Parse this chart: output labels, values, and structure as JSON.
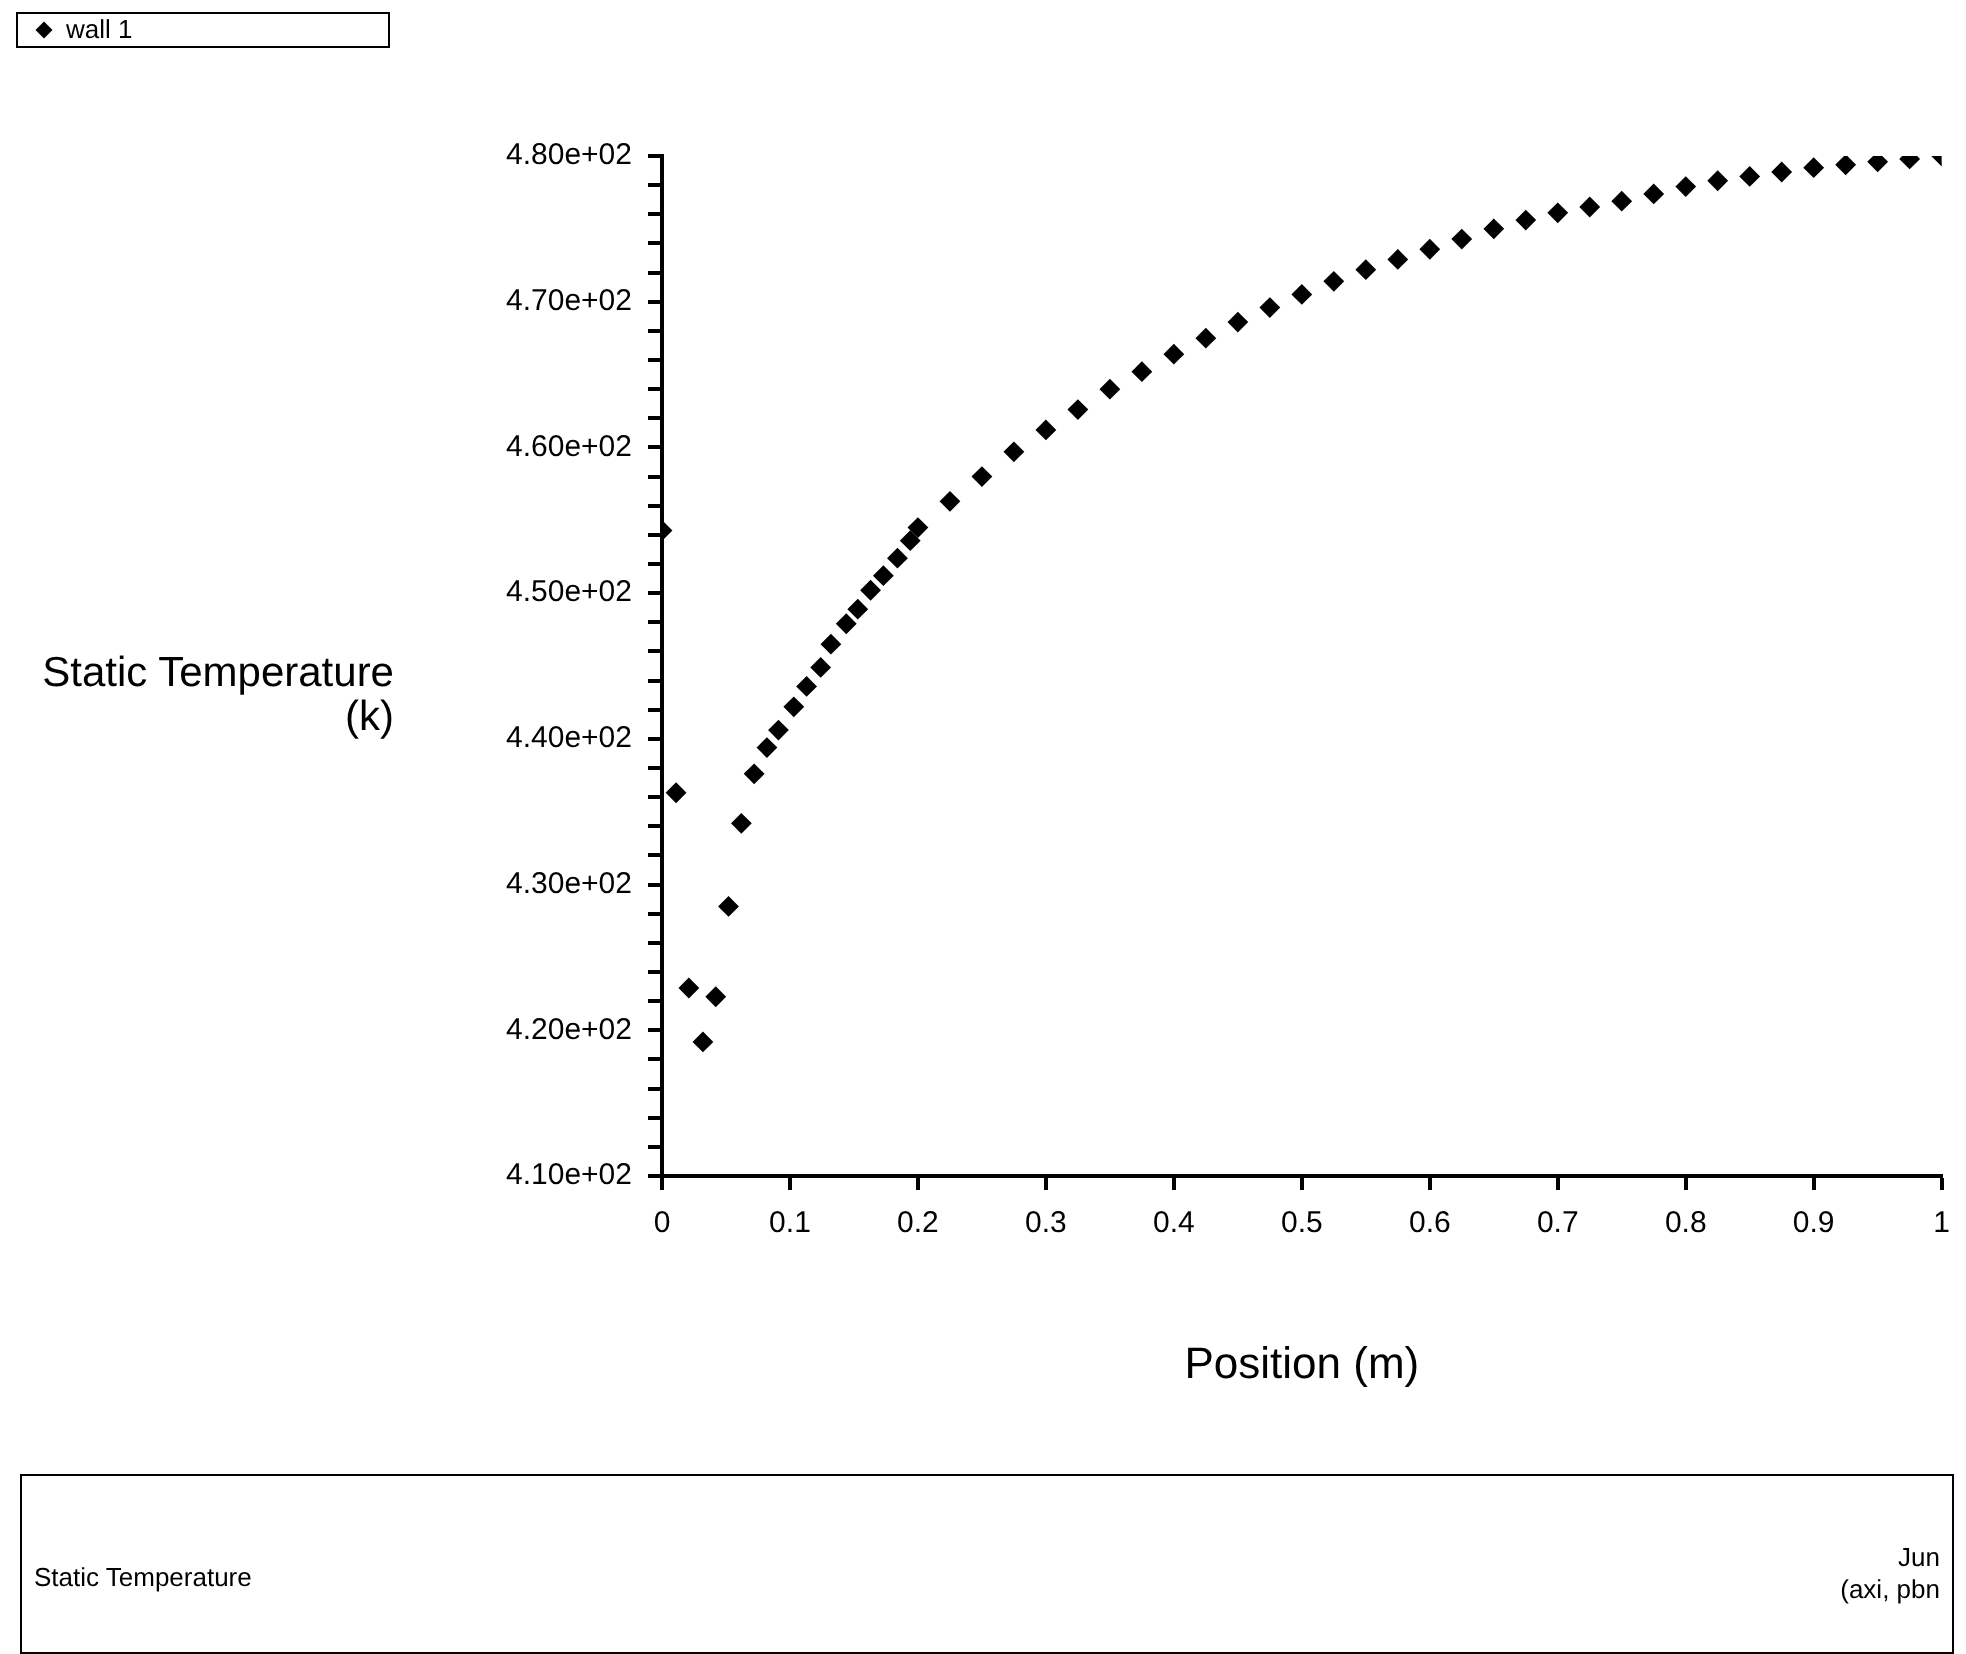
{
  "chart_data": {
    "type": "scatter",
    "xlabel": "Position (m)",
    "ylabel": "Static Temperature (k)",
    "series": [
      {
        "name": "wall 1",
        "color": "#000000",
        "x": [
          0,
          0.011,
          0.021,
          0.032,
          0.042,
          0.052,
          0.062,
          0.072,
          0.082,
          0.091,
          0.103,
          0.113,
          0.124,
          0.132,
          0.144,
          0.153,
          0.163,
          0.173,
          0.184,
          0.194,
          0.2,
          0.225,
          0.25,
          0.275,
          0.3,
          0.325,
          0.35,
          0.375,
          0.4,
          0.425,
          0.45,
          0.475,
          0.5,
          0.525,
          0.55,
          0.575,
          0.6,
          0.625,
          0.65,
          0.675,
          0.7,
          0.725,
          0.75,
          0.775,
          0.8,
          0.825,
          0.85,
          0.875,
          0.9,
          0.925,
          0.95,
          0.975,
          1
        ],
        "values": [
          454.3,
          436.3,
          422.9,
          419.2,
          422.3,
          428.5,
          434.2,
          437.6,
          439.4,
          440.6,
          442.2,
          443.6,
          444.9,
          446.5,
          447.9,
          448.9,
          450.2,
          451.2,
          452.4,
          453.6,
          454.5,
          456.3,
          458,
          459.7,
          461.2,
          462.6,
          464,
          465.2,
          466.4,
          467.5,
          468.6,
          469.6,
          470.5,
          471.4,
          472.2,
          472.9,
          473.6,
          474.3,
          475,
          475.6,
          476.1,
          476.5,
          476.9,
          477.4,
          477.9,
          478.3,
          478.6,
          478.9,
          479.2,
          479.4,
          479.6,
          479.8,
          480
        ]
      }
    ],
    "xlim": [
      0,
      1
    ],
    "xticks": [
      0,
      0.1,
      0.2,
      0.3,
      0.4,
      0.5,
      0.6,
      0.7,
      0.8,
      0.9,
      1
    ],
    "ylim": [
      410,
      480
    ],
    "yticks": [
      {
        "value": 410,
        "label": "4.10e+02"
      },
      {
        "value": 412,
        "label": null
      },
      {
        "value": 414,
        "label": null
      },
      {
        "value": 416,
        "label": null
      },
      {
        "value": 418,
        "label": null
      },
      {
        "value": 420,
        "label": "4.20e+02"
      },
      {
        "value": 422,
        "label": null
      },
      {
        "value": 424,
        "label": null
      },
      {
        "value": 426,
        "label": null
      },
      {
        "value": 428,
        "label": null
      },
      {
        "value": 430,
        "label": "4.30e+02"
      },
      {
        "value": 432,
        "label": null
      },
      {
        "value": 434,
        "label": null
      },
      {
        "value": 436,
        "label": null
      },
      {
        "value": 438,
        "label": null
      },
      {
        "value": 440,
        "label": "4.40e+02"
      },
      {
        "value": 442,
        "label": null
      },
      {
        "value": 444,
        "label": null
      },
      {
        "value": 446,
        "label": null
      },
      {
        "value": 448,
        "label": null
      },
      {
        "value": 450,
        "label": "4.50e+02"
      },
      {
        "value": 452,
        "label": null
      },
      {
        "value": 454,
        "label": null
      },
      {
        "value": 456,
        "label": null
      },
      {
        "value": 458,
        "label": null
      },
      {
        "value": 460,
        "label": "4.60e+02"
      },
      {
        "value": 462,
        "label": null
      },
      {
        "value": 464,
        "label": null
      },
      {
        "value": 466,
        "label": null
      },
      {
        "value": 468,
        "label": null
      },
      {
        "value": 470,
        "label": "4.70e+02"
      },
      {
        "value": 472,
        "label": null
      },
      {
        "value": 474,
        "label": null
      },
      {
        "value": 476,
        "label": null
      },
      {
        "value": 478,
        "label": null
      },
      {
        "value": 480,
        "label": "4.80e+02"
      }
    ],
    "marker": "diamond",
    "legend": "top left",
    "annotations": [
      "Static Temperature",
      "Jun",
      "(axi, pbn"
    ]
  }
}
